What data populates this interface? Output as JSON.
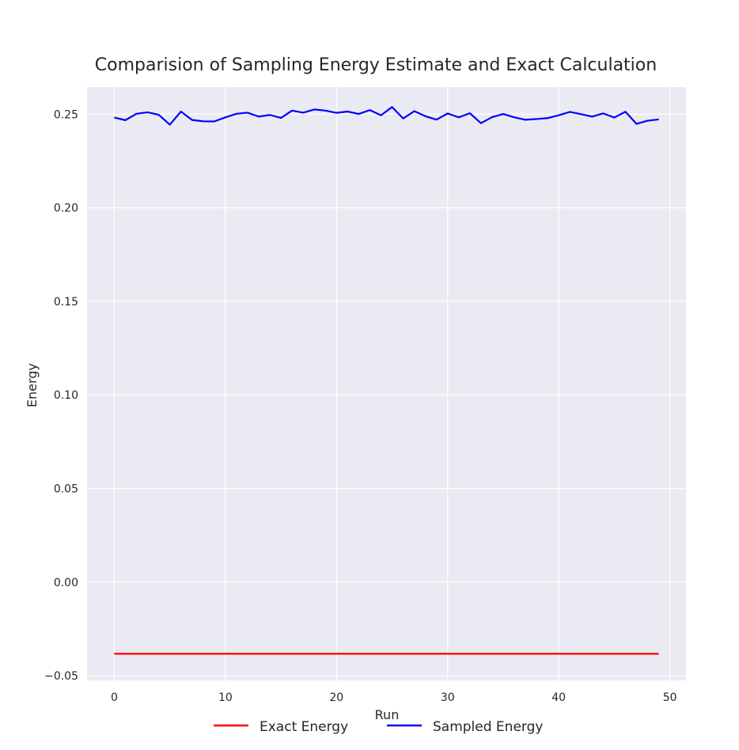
{
  "chart_data": {
    "type": "line",
    "title": "Comparision of Sampling Energy Estimate and Exact Calculation",
    "xlabel": "Run",
    "ylabel": "Energy",
    "xlim": [
      -2.45,
      51.45
    ],
    "ylim": [
      -0.0525,
      0.2645
    ],
    "xticks": [
      0,
      10,
      20,
      30,
      40,
      50
    ],
    "yticks": [
      -0.05,
      0.0,
      0.05,
      0.1,
      0.15,
      0.2,
      0.25
    ],
    "xtick_labels": [
      "0",
      "10",
      "20",
      "30",
      "40",
      "50"
    ],
    "ytick_labels": [
      "−0.05",
      "0.00",
      "0.05",
      "0.10",
      "0.15",
      "0.20",
      "0.25"
    ],
    "grid": true,
    "legend_placement": "bottom-center",
    "series": [
      {
        "name": "Exact Energy",
        "color": "#ff0000",
        "x": [
          0,
          49
        ],
        "values": [
          -0.0383,
          -0.0383
        ]
      },
      {
        "name": "Sampled Energy",
        "color": "#0000ff",
        "x": [
          0,
          1,
          2,
          3,
          4,
          5,
          6,
          7,
          8,
          9,
          10,
          11,
          12,
          13,
          14,
          15,
          16,
          17,
          18,
          19,
          20,
          21,
          22,
          23,
          24,
          25,
          26,
          27,
          28,
          29,
          30,
          31,
          32,
          33,
          34,
          35,
          36,
          37,
          38,
          39,
          40,
          41,
          42,
          43,
          44,
          45,
          46,
          47,
          48,
          49
        ],
        "values": [
          0.2482,
          0.2468,
          0.2502,
          0.251,
          0.2497,
          0.2444,
          0.2514,
          0.2469,
          0.2462,
          0.2461,
          0.2483,
          0.2502,
          0.2508,
          0.2487,
          0.2496,
          0.248,
          0.2519,
          0.2508,
          0.2525,
          0.2519,
          0.2507,
          0.2514,
          0.2501,
          0.2522,
          0.2494,
          0.2538,
          0.2477,
          0.2516,
          0.2489,
          0.2471,
          0.2504,
          0.2483,
          0.2505,
          0.2452,
          0.2484,
          0.2501,
          0.2483,
          0.247,
          0.2474,
          0.2479,
          0.2494,
          0.2512,
          0.25,
          0.2487,
          0.2504,
          0.2482,
          0.2513,
          0.2448,
          0.2465,
          0.2472
        ]
      }
    ]
  }
}
